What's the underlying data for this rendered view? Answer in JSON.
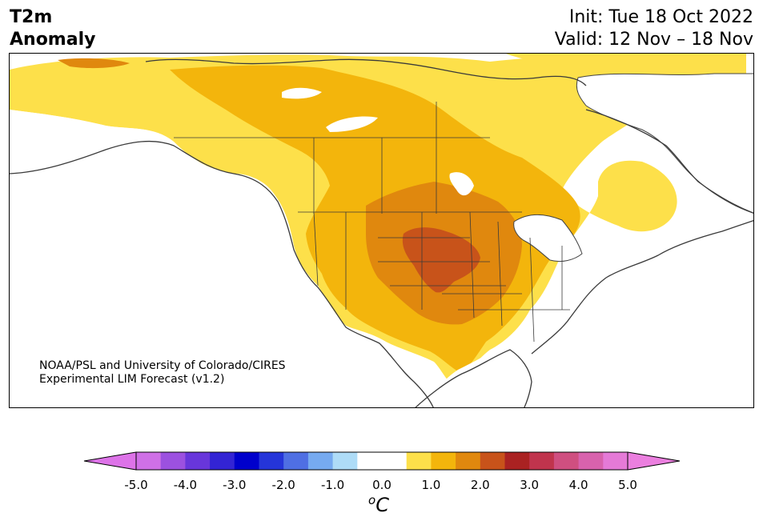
{
  "header": {
    "title_line1": "T2m",
    "title_line2": "Anomaly",
    "init_text": "Init: Tue 18 Oct 2022",
    "valid_text": "Valid: 12 Nov – 18 Nov"
  },
  "credit": {
    "line1": "NOAA/PSL and University of Colorado/CIRES",
    "line2": "Experimental LIM Forecast (v1.2)"
  },
  "colorbar": {
    "unit_prefix": "o",
    "unit_main": "C",
    "ticks": [
      "-5.0",
      "-4.0",
      "-3.0",
      "-2.0",
      "-1.0",
      "0.0",
      "1.0",
      "2.0",
      "3.0",
      "4.0",
      "5.0"
    ],
    "colors": [
      "#cf70e6",
      "#9c51e0",
      "#6836db",
      "#3324d4",
      "#0000cc",
      "#2535d9",
      "#4f6fe3",
      "#76aaf0",
      "#aedcf7",
      "#ffffff",
      "#ffffff",
      "#fde04a",
      "#f3b50c",
      "#e0880e",
      "#c8531a",
      "#aa2222",
      "#c0344d",
      "#cf4f80",
      "#d862ad",
      "#e57ad7"
    ],
    "under_color": "#dd73e8",
    "over_color": "#eb7fdf"
  },
  "map": {
    "region": "North America",
    "fill_colors": {
      "anomaly_0.5_1.0": "#fde04a",
      "anomaly_1.0_1.5": "#f3b50c",
      "anomaly_1.5_2.0": "#e0880e",
      "anomaly_2.0_2.5": "#c8531a"
    }
  }
}
